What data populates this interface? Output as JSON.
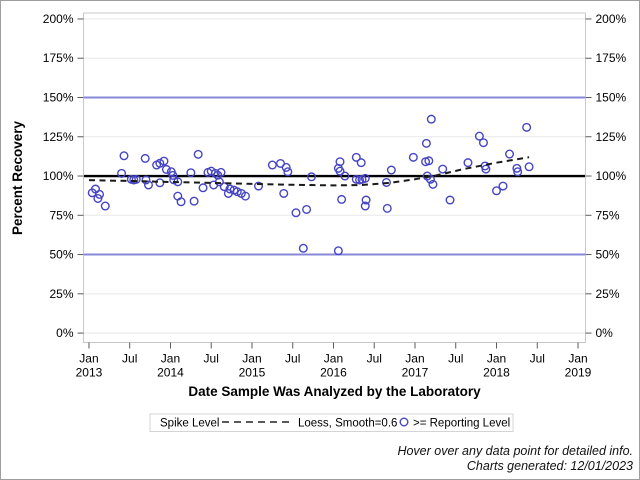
{
  "footer": {
    "line1": "Hover over any data point for detailed info.",
    "line2": "Charts generated: 12/01/2023"
  },
  "colors": {
    "marker": "#4545C4",
    "reference_line": "#8787D8",
    "spike_line": "#000000",
    "loess_line": "#1a1a1a",
    "gridline": "#E8E8E8",
    "plot_border": "#C9C9C9",
    "tick": "#5a5a5a"
  },
  "chart_data": {
    "type": "scatter",
    "title": "",
    "xlabel": "Date Sample Was Analyzed by the Laboratory",
    "ylabel": "Percent Recovery",
    "xlim": [
      2012.933,
      2019.092
    ],
    "ylim": [
      -6,
      203.8
    ],
    "grid": "horizontal-only",
    "y_ticks": {
      "values": [
        0,
        25,
        50,
        75,
        100,
        125,
        150,
        175,
        200
      ],
      "labels": [
        "0%",
        "25%",
        "50%",
        "75%",
        "100%",
        "125%",
        "150%",
        "175%",
        "200%"
      ],
      "shown_on": "both-sides"
    },
    "x_ticks": [
      {
        "year": 2013.0,
        "label": "Jan",
        "sub": "2013"
      },
      {
        "year": 2013.5,
        "label": "Jul",
        "sub": ""
      },
      {
        "year": 2014.0,
        "label": "Jan",
        "sub": "2014"
      },
      {
        "year": 2014.5,
        "label": "Jul",
        "sub": ""
      },
      {
        "year": 2015.0,
        "label": "Jan",
        "sub": "2015"
      },
      {
        "year": 2015.5,
        "label": "Jul",
        "sub": ""
      },
      {
        "year": 2016.0,
        "label": "Jan",
        "sub": "2016"
      },
      {
        "year": 2016.5,
        "label": "Jul",
        "sub": ""
      },
      {
        "year": 2017.0,
        "label": "Jan",
        "sub": "2017"
      },
      {
        "year": 2017.5,
        "label": "Jul",
        "sub": ""
      },
      {
        "year": 2018.0,
        "label": "Jan",
        "sub": "2018"
      },
      {
        "year": 2018.5,
        "label": "Jul",
        "sub": ""
      },
      {
        "year": 2019.0,
        "label": "Jan",
        "sub": "2019"
      }
    ],
    "reference_lines": [
      {
        "value": 150,
        "kind": "limit",
        "color": "#8787D8",
        "width": 2
      },
      {
        "value": 100,
        "kind": "spike-level",
        "color": "#000000",
        "width": 2.4
      },
      {
        "value": 50,
        "kind": "limit",
        "color": "#8787D8",
        "width": 2
      }
    ],
    "legend": {
      "title": "Spike Level",
      "position": "bottom-center"
    },
    "series": [
      {
        "name": ">= Reporting Level",
        "type": "scatter",
        "marker": "open-circle",
        "color": "#4545C4",
        "points": [
          [
            2013.04,
            89.3
          ],
          [
            2013.08,
            91.7
          ],
          [
            2013.11,
            85.7
          ],
          [
            2013.13,
            88.3
          ],
          [
            2013.2,
            80.9
          ],
          [
            2013.4,
            101.7
          ],
          [
            2013.43,
            112.9
          ],
          [
            2013.52,
            97.9
          ],
          [
            2013.55,
            97.5
          ],
          [
            2013.58,
            97.9
          ],
          [
            2013.69,
            111.2
          ],
          [
            2013.7,
            97.5
          ],
          [
            2013.73,
            94.3
          ],
          [
            2013.83,
            107.0
          ],
          [
            2013.87,
            108.1
          ],
          [
            2013.87,
            95.7
          ],
          [
            2013.92,
            109.5
          ],
          [
            2013.95,
            104.2
          ],
          [
            2014.01,
            102.7
          ],
          [
            2014.03,
            100.4
          ],
          [
            2014.04,
            97.6
          ],
          [
            2014.09,
            96.3
          ],
          [
            2014.09,
            87.2
          ],
          [
            2014.13,
            83.6
          ],
          [
            2014.25,
            102.1
          ],
          [
            2014.29,
            84.0
          ],
          [
            2014.34,
            113.8
          ],
          [
            2014.4,
            92.5
          ],
          [
            2014.46,
            102.3
          ],
          [
            2014.5,
            103.1
          ],
          [
            2014.53,
            94.3
          ],
          [
            2014.55,
            101.7
          ],
          [
            2014.58,
            100.5
          ],
          [
            2014.6,
            96.3
          ],
          [
            2014.62,
            102.3
          ],
          [
            2014.66,
            93.2
          ],
          [
            2014.71,
            88.9
          ],
          [
            2014.73,
            91.7
          ],
          [
            2014.78,
            91.0
          ],
          [
            2014.82,
            90.0
          ],
          [
            2014.87,
            88.9
          ],
          [
            2014.92,
            87.2
          ],
          [
            2015.08,
            93.6
          ],
          [
            2015.25,
            107.0
          ],
          [
            2015.35,
            108.0
          ],
          [
            2015.39,
            88.9
          ],
          [
            2015.42,
            105.5
          ],
          [
            2015.44,
            102.7
          ],
          [
            2015.54,
            76.6
          ],
          [
            2015.63,
            54.0
          ],
          [
            2015.67,
            78.7
          ],
          [
            2015.73,
            99.5
          ],
          [
            2016.06,
            52.4
          ],
          [
            2016.06,
            104.9
          ],
          [
            2016.08,
            109.1
          ],
          [
            2016.08,
            103.1
          ],
          [
            2016.1,
            85.1
          ],
          [
            2016.14,
            100.0
          ],
          [
            2016.28,
            111.9
          ],
          [
            2016.28,
            97.9
          ],
          [
            2016.32,
            97.5
          ],
          [
            2016.34,
            108.5
          ],
          [
            2016.35,
            97.9
          ],
          [
            2016.39,
            98.5
          ],
          [
            2016.39,
            80.9
          ],
          [
            2016.4,
            84.7
          ],
          [
            2016.65,
            95.9
          ],
          [
            2016.66,
            79.4
          ],
          [
            2016.71,
            103.8
          ],
          [
            2016.98,
            111.9
          ],
          [
            2017.13,
            109.1
          ],
          [
            2017.14,
            120.8
          ],
          [
            2017.15,
            100.0
          ],
          [
            2017.17,
            109.7
          ],
          [
            2017.19,
            97.9
          ],
          [
            2017.2,
            136.2
          ],
          [
            2017.22,
            94.7
          ],
          [
            2017.34,
            104.4
          ],
          [
            2017.43,
            84.7
          ],
          [
            2017.65,
            108.5
          ],
          [
            2017.79,
            125.4
          ],
          [
            2017.84,
            121.2
          ],
          [
            2017.86,
            106.4
          ],
          [
            2017.87,
            104.4
          ],
          [
            2018.0,
            90.6
          ],
          [
            2018.08,
            93.6
          ],
          [
            2018.16,
            114.0
          ],
          [
            2018.25,
            104.9
          ],
          [
            2018.26,
            102.7
          ],
          [
            2018.37,
            131.0
          ],
          [
            2018.4,
            105.9
          ]
        ]
      },
      {
        "name": "Loess, Smooth=0.6",
        "type": "line",
        "style": "dashed",
        "color": "#1a1a1a",
        "points": [
          [
            2013.0,
            97.4
          ],
          [
            2013.5,
            96.8
          ],
          [
            2014.0,
            96.2
          ],
          [
            2014.5,
            95.6
          ],
          [
            2015.0,
            95.0
          ],
          [
            2015.5,
            94.4
          ],
          [
            2016.0,
            94.0
          ],
          [
            2016.35,
            94.3
          ],
          [
            2016.7,
            95.7
          ],
          [
            2017.0,
            98.0
          ],
          [
            2017.25,
            100.3
          ],
          [
            2017.6,
            104.5
          ],
          [
            2018.0,
            108.5
          ],
          [
            2018.4,
            112.0
          ]
        ]
      }
    ]
  }
}
